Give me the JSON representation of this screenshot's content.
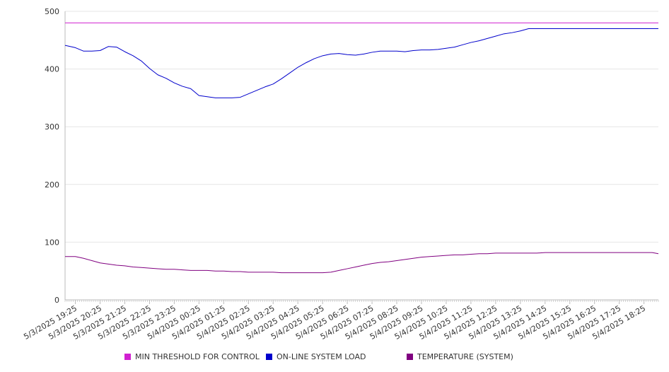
{
  "chart_data": {
    "type": "line",
    "title": "",
    "xlabel": "",
    "ylabel": "",
    "ylim": [
      0,
      500
    ],
    "yticks": [
      0,
      100,
      200,
      300,
      400,
      500
    ],
    "grid": true,
    "legend_position": "bottom",
    "colors": {
      "threshold": "#d020d0",
      "load": "#0000cc",
      "temperature": "#800080",
      "grid": "#e6e6e6",
      "axis": "#bbbbbb"
    },
    "x_labels": [
      "5/3/2025 19:25",
      "5/3/2025 20:25",
      "5/3/2025 21:25",
      "5/3/2025 22:25",
      "5/3/2025 23:25",
      "5/4/2025 00:25",
      "5/4/2025 01:25",
      "5/4/2025 02:25",
      "5/4/2025 03:25",
      "5/4/2025 04:25",
      "5/4/2025 05:25",
      "5/4/2025 06:25",
      "5/4/2025 07:25",
      "5/4/2025 08:25",
      "5/4/2025 09:25",
      "5/4/2025 10:25",
      "5/4/2025 11:25",
      "5/4/2025 12:25",
      "5/4/2025 13:25",
      "5/4/2025 14:25",
      "5/4/2025 15:25",
      "5/4/2025 16:25",
      "5/4/2025 17:25",
      "5/4/2025 18:25"
    ],
    "x": [
      "5/3/2025 19:00",
      "5/3/2025 19:25",
      "5/3/2025 19:45",
      "5/3/2025 20:05",
      "5/3/2025 20:25",
      "5/3/2025 20:45",
      "5/3/2025 21:05",
      "5/3/2025 21:25",
      "5/3/2025 21:45",
      "5/3/2025 22:05",
      "5/3/2025 22:25",
      "5/3/2025 22:45",
      "5/3/2025 23:05",
      "5/3/2025 23:25",
      "5/3/2025 23:45",
      "5/4/2025 00:05",
      "5/4/2025 00:25",
      "5/4/2025 00:45",
      "5/4/2025 01:05",
      "5/4/2025 01:25",
      "5/4/2025 01:45",
      "5/4/2025 02:05",
      "5/4/2025 02:25",
      "5/4/2025 02:45",
      "5/4/2025 03:05",
      "5/4/2025 03:25",
      "5/4/2025 03:45",
      "5/4/2025 04:05",
      "5/4/2025 04:25",
      "5/4/2025 04:45",
      "5/4/2025 05:05",
      "5/4/2025 05:25",
      "5/4/2025 05:45",
      "5/4/2025 06:05",
      "5/4/2025 06:25",
      "5/4/2025 06:45",
      "5/4/2025 07:05",
      "5/4/2025 07:25",
      "5/4/2025 07:45",
      "5/4/2025 08:05",
      "5/4/2025 08:25",
      "5/4/2025 08:45",
      "5/4/2025 09:05",
      "5/4/2025 09:25",
      "5/4/2025 09:45",
      "5/4/2025 10:05",
      "5/4/2025 10:25",
      "5/4/2025 10:45",
      "5/4/2025 11:05",
      "5/4/2025 11:25",
      "5/4/2025 11:45",
      "5/4/2025 12:05",
      "5/4/2025 12:25",
      "5/4/2025 12:45",
      "5/4/2025 13:05",
      "5/4/2025 13:25",
      "5/4/2025 13:45",
      "5/4/2025 14:05",
      "5/4/2025 14:25",
      "5/4/2025 14:45",
      "5/4/2025 15:05",
      "5/4/2025 15:25",
      "5/4/2025 15:45",
      "5/4/2025 16:05",
      "5/4/2025 16:25",
      "5/4/2025 16:45",
      "5/4/2025 17:05",
      "5/4/2025 17:25",
      "5/4/2025 17:45",
      "5/4/2025 18:05",
      "5/4/2025 18:25",
      "5/4/2025 18:45",
      "5/4/2025 19:00"
    ],
    "series": [
      {
        "name": "MIN THRESHOLD FOR CONTROL",
        "values": [
          480,
          480,
          480,
          480,
          480,
          480,
          480,
          480,
          480,
          480,
          480,
          480,
          480,
          480,
          480,
          480,
          480,
          480,
          480,
          480,
          480,
          480,
          480,
          480,
          480,
          480,
          480,
          480,
          480,
          480,
          480,
          480,
          480,
          480,
          480,
          480,
          480,
          480,
          480,
          480,
          480,
          480,
          480,
          480,
          480,
          480,
          480,
          480,
          480,
          480,
          480,
          480,
          480,
          480,
          480,
          480,
          480,
          480,
          480,
          480,
          480,
          480,
          480,
          480,
          480,
          480,
          480,
          480,
          480,
          480,
          480,
          480,
          480
        ]
      },
      {
        "name": "ON-LINE SYSTEM LOAD",
        "values": [
          441,
          437,
          431,
          431,
          432,
          439,
          438,
          430,
          423,
          414,
          401,
          390,
          384,
          376,
          370,
          366,
          354,
          352,
          350,
          350,
          350,
          351,
          357,
          363,
          369,
          374,
          383,
          393,
          403,
          411,
          418,
          423,
          426,
          427,
          425,
          424,
          426,
          429,
          431,
          431,
          431,
          430,
          432,
          433,
          433,
          434,
          436,
          438,
          442,
          446,
          449,
          453,
          457,
          461,
          463,
          466,
          470,
          470,
          470,
          470,
          470,
          470,
          470,
          470,
          470,
          470,
          470,
          470,
          470,
          470,
          470,
          470,
          470
        ]
      },
      {
        "name": "TEMPERATURE (SYSTEM)",
        "values": [
          75,
          75,
          72,
          68,
          64,
          62,
          60,
          59,
          57,
          56,
          55,
          54,
          53,
          53,
          52,
          51,
          51,
          51,
          50,
          50,
          49,
          49,
          48,
          48,
          48,
          48,
          47,
          47,
          47,
          47,
          47,
          47,
          48,
          51,
          54,
          57,
          60,
          63,
          65,
          66,
          68,
          70,
          72,
          74,
          75,
          76,
          77,
          78,
          78,
          79,
          80,
          80,
          81,
          81,
          81,
          81,
          81,
          81,
          82,
          82,
          82,
          82,
          82,
          82,
          82,
          82,
          82,
          82,
          82,
          82,
          82,
          82,
          80
        ]
      }
    ]
  }
}
